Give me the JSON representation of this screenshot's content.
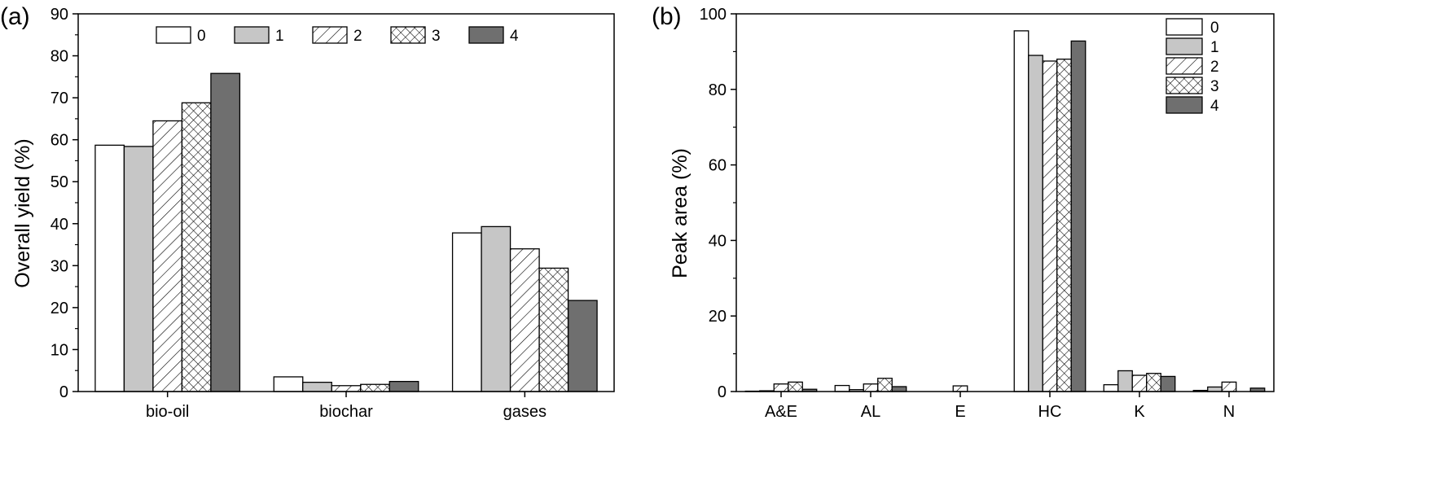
{
  "chart_data": [
    {
      "panel_label": "(a)",
      "type": "bar",
      "title": "",
      "xlabel": "",
      "ylabel": "Overall yield (%)",
      "ylim": [
        0,
        90
      ],
      "yticks": [
        0,
        10,
        20,
        30,
        40,
        50,
        60,
        70,
        80,
        90
      ],
      "grid": false,
      "legend_position": "top",
      "categories": [
        "bio-oil",
        "biochar",
        "gases"
      ],
      "series": [
        {
          "name": "0",
          "values": [
            58.7,
            3.5,
            37.8
          ]
        },
        {
          "name": "1",
          "values": [
            58.4,
            2.2,
            39.3
          ]
        },
        {
          "name": "2",
          "values": [
            64.5,
            1.4,
            34.0
          ]
        },
        {
          "name": "3",
          "values": [
            68.8,
            1.7,
            29.4
          ]
        },
        {
          "name": "4",
          "values": [
            75.8,
            2.4,
            21.7
          ]
        }
      ]
    },
    {
      "panel_label": "(b)",
      "type": "bar",
      "title": "",
      "xlabel": "",
      "ylabel": "Peak area (%)",
      "ylim": [
        0,
        100
      ],
      "yticks": [
        0,
        20,
        40,
        60,
        80,
        100
      ],
      "grid": false,
      "legend_position": "top-right",
      "categories": [
        "A&E",
        "AL",
        "E",
        "HC",
        "K",
        "N"
      ],
      "series": [
        {
          "name": "0",
          "values": [
            0.1,
            1.6,
            0.0,
            95.5,
            1.8,
            0.3
          ]
        },
        {
          "name": "1",
          "values": [
            0.2,
            0.5,
            0.0,
            89.0,
            5.5,
            1.2
          ]
        },
        {
          "name": "2",
          "values": [
            2.0,
            2.0,
            1.5,
            87.5,
            4.3,
            2.5
          ]
        },
        {
          "name": "3",
          "values": [
            2.5,
            3.5,
            0.0,
            88.0,
            4.8,
            0.0
          ]
        },
        {
          "name": "4",
          "values": [
            0.6,
            1.3,
            0.0,
            92.8,
            4.0,
            0.9
          ]
        }
      ]
    }
  ],
  "series_styles": [
    "white",
    "light-gray",
    "diagonal-hatch",
    "crosshatch",
    "dark-gray"
  ],
  "colors": {
    "light_gray": "#c6c6c6",
    "dark_gray": "#6f6f6f",
    "line": "#000000"
  }
}
